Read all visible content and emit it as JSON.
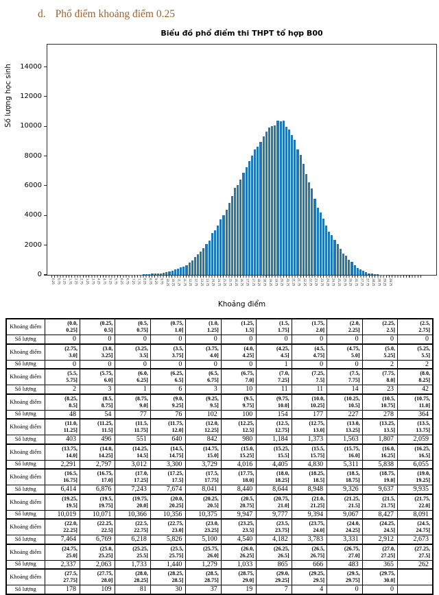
{
  "page": {
    "heading_number": "d.",
    "heading_text": "Phổ điểm khoảng điểm 0.25"
  },
  "chart": {
    "title": "Biểu đồ phổ điểm thi THPT tổ hợp B00",
    "xlabel": "Khoảng điểm",
    "ylabel": "Số lượng học sinh",
    "bar_color": "#1f77b4",
    "axis_color": "#2a2a2a",
    "yticks": [
      0,
      2000,
      4000,
      6000,
      8000,
      10000,
      12000,
      14000
    ],
    "ymax": 15500
  },
  "chart_data": {
    "type": "bar",
    "title": "Biểu đồ phổ điểm thi THPT tổ hợp B00",
    "xlabel": "Khoảng điểm",
    "ylabel": "Số lượng học sinh",
    "ylim": [
      0,
      15500
    ],
    "grid": false,
    "legend": false,
    "bin_width": 0.25,
    "categories": [
      "(0.0, 0.25]",
      "(0.25, 0.5]",
      "(0.5, 0.75]",
      "(0.75, 1.0]",
      "(1.0, 1.25]",
      "(1.25, 1.5]",
      "(1.5, 1.75]",
      "(1.75, 2.0]",
      "(2.0, 2.25]",
      "(2.25, 2.5]",
      "(2.5, 2.75]",
      "(2.75, 3.0]",
      "(3.0, 3.25]",
      "(3.25, 3.5]",
      "(3.5, 3.75]",
      "(3.75, 4.0]",
      "(4.0, 4.25]",
      "(4.25, 4.5]",
      "(4.5, 4.75]",
      "(4.75, 5.0]",
      "(5.0, 5.25]",
      "(5.25, 5.5]",
      "(5.5, 5.75]",
      "(5.75, 6.0]",
      "(6.0, 6.25]",
      "(6.25, 6.5]",
      "(6.5, 6.75]",
      "(6.75, 7.0]",
      "(7.0, 7.25]",
      "(7.25, 7.5]",
      "(7.5, 7.75]",
      "(7.75, 8.0]",
      "(8.0, 8.25]",
      "(8.25, 8.5]",
      "(8.5, 8.75]",
      "(8.75, 9.0]",
      "(9.0, 9.25]",
      "(9.25, 9.5]",
      "(9.5, 9.75]",
      "(9.75, 10.0]",
      "(10.0, 10.25]",
      "(10.25, 10.5]",
      "(10.5, 10.75]",
      "(10.75, 11.0]",
      "(11.0, 11.25]",
      "(11.25, 11.5]",
      "(11.5, 11.75]",
      "(11.75, 12.0]",
      "(12.0, 12.25]",
      "(12.25, 12.5]",
      "(12.5, 12.75]",
      "(12.75, 13.0]",
      "(13.0, 13.25]",
      "(13.25, 13.5]",
      "(13.5, 13.75]",
      "(13.75, 14.0]",
      "(14.0, 14.25]",
      "(14.25, 14.5]",
      "(14.5, 14.75]",
      "(14.75, 15.0]",
      "(15.0, 15.25]",
      "(15.25, 15.5]",
      "(15.5, 15.75]",
      "(15.75, 16.0]",
      "(16.0, 16.25]",
      "(16.25, 16.5]",
      "(16.5, 16.75]",
      "(16.75, 17.0]",
      "(17.0, 17.25]",
      "(17.25, 17.5]",
      "(17.5, 17.75]",
      "(17.75, 18.0]",
      "(18.0, 18.25]",
      "(18.25, 18.5]",
      "(18.5, 18.75]",
      "(18.75, 19.0]",
      "(19.0, 19.25]",
      "(19.25, 19.5]",
      "(19.5, 19.75]",
      "(19.75, 20.0]",
      "(20.0, 20.25]",
      "(20.25, 20.5]",
      "(20.5, 20.75]",
      "(20.75, 21.0]",
      "(21.0, 21.25]",
      "(21.25, 21.5]",
      "(21.5, 21.75]",
      "(21.75, 22.0]",
      "(22.0, 22.25]",
      "(22.25, 22.5]",
      "(22.5, 22.75]",
      "(22.75, 23.0]",
      "(23.0, 23.25]",
      "(23.25, 23.5]",
      "(23.5, 23.75]",
      "(23.75, 24.0]",
      "(24.0, 24.25]",
      "(24.25, 24.5]",
      "(24.5, 24.75]",
      "(24.75, 25.0]",
      "(25.0, 25.25]",
      "(25.25, 25.5]",
      "(25.5, 25.75]",
      "(25.75, 26.0]",
      "(26.0, 26.25]",
      "(26.25, 26.5]",
      "(26.5, 26.75]",
      "(26.75, 27.0]",
      "(27.0, 27.25]",
      "(27.25, 27.5]",
      "(27.5, 27.75]",
      "(27.75, 28.0]",
      "(28.0, 28.25]",
      "(28.25, 28.5]",
      "(28.5, 28.75]",
      "(28.75, 29.0]",
      "(29.0, 29.25]",
      "(29.25, 29.5]",
      "(29.5, 29.75]",
      "(29.75, 30.0]"
    ],
    "values": [
      0,
      0,
      0,
      0,
      0,
      0,
      0,
      0,
      0,
      0,
      0,
      0,
      0,
      0,
      0,
      0,
      0,
      1,
      0,
      0,
      2,
      2,
      2,
      3,
      1,
      6,
      3,
      10,
      11,
      11,
      14,
      23,
      42,
      48,
      54,
      77,
      76,
      102,
      100,
      154,
      177,
      227,
      278,
      364,
      403,
      496,
      551,
      640,
      842,
      980,
      1184,
      1373,
      1563,
      1807,
      2059,
      2291,
      2797,
      3012,
      3300,
      3729,
      4016,
      4405,
      4830,
      5311,
      5838,
      6055,
      6414,
      6876,
      7243,
      7674,
      8041,
      8440,
      8644,
      8948,
      9326,
      9637,
      9935,
      10019,
      10071,
      10366,
      10356,
      10375,
      9947,
      9777,
      9394,
      9067,
      8427,
      8091,
      7464,
      6769,
      6218,
      5826,
      5100,
      4540,
      4182,
      3783,
      3331,
      2912,
      2673,
      2337,
      2063,
      1733,
      1440,
      1279,
      1033,
      865,
      666,
      483,
      365,
      262,
      178,
      109,
      81,
      30,
      37,
      19,
      7,
      4,
      0,
      0
    ]
  },
  "table": {
    "row_label_interval": "Khoảng điểm",
    "row_label_count": "Số lượng",
    "columns_per_group": 11
  }
}
